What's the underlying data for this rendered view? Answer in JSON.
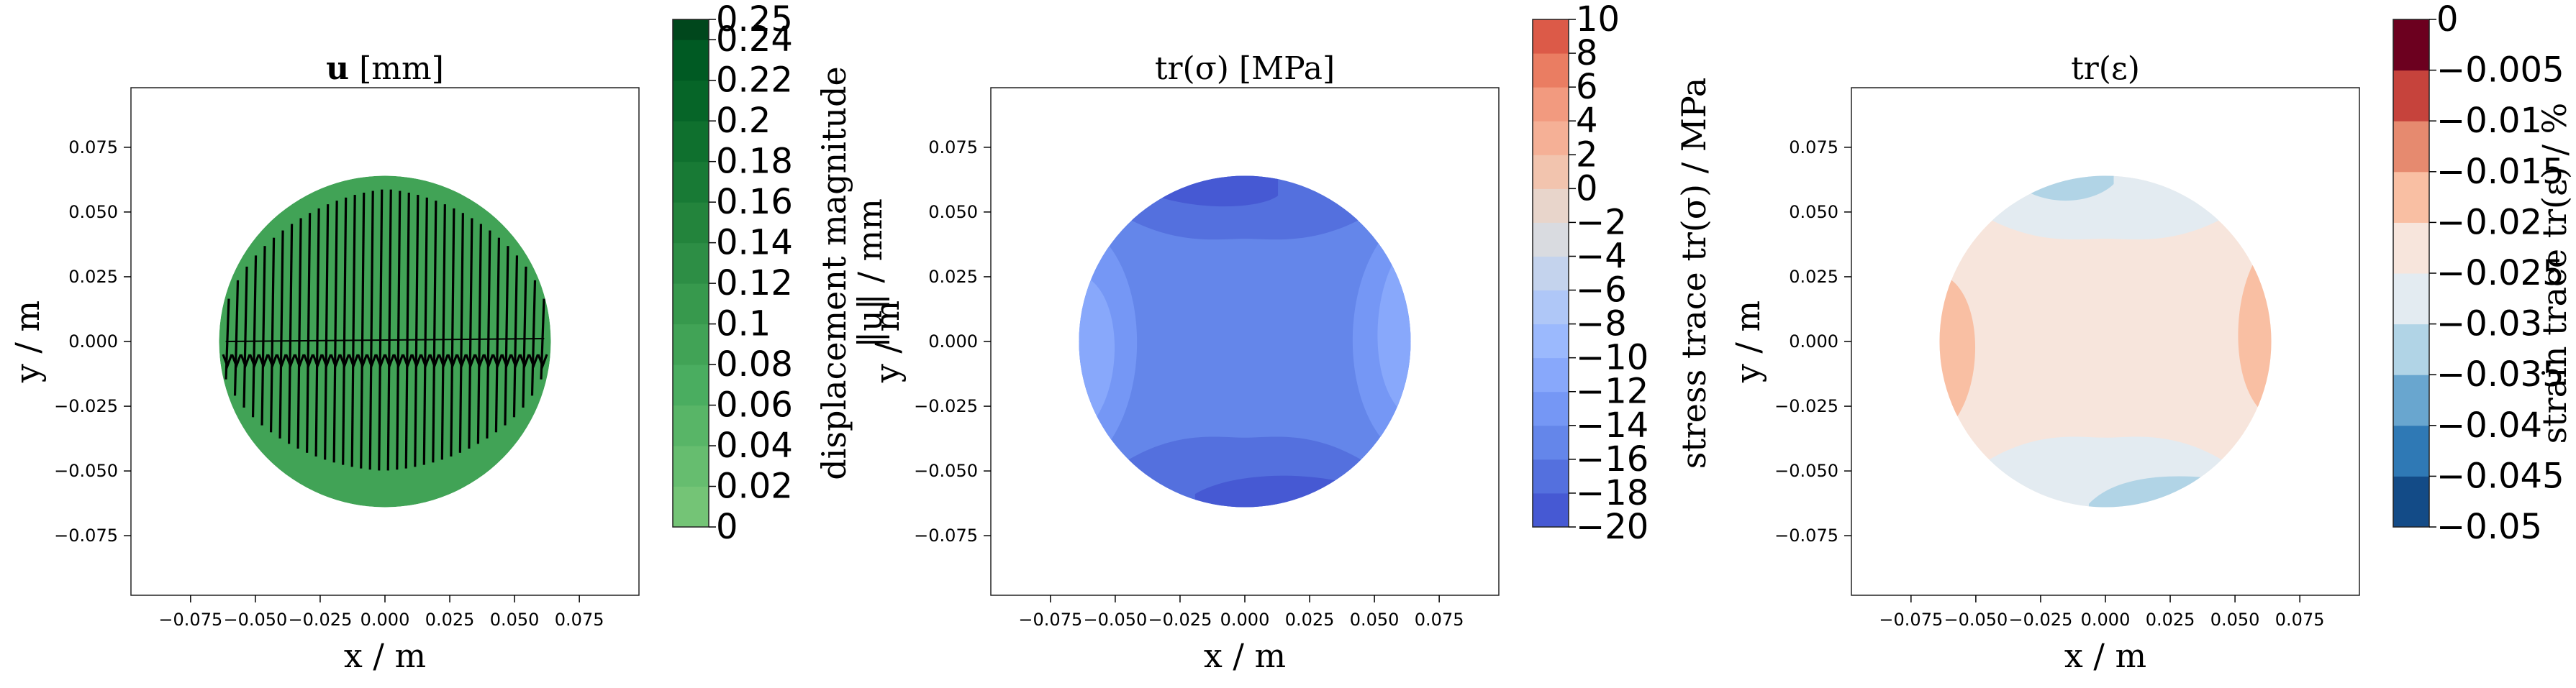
{
  "chart_data": [
    {
      "type": "heatmap",
      "title": "u [mm]",
      "title_bold": "u",
      "title_rest": " [mm]",
      "xlabel": "x / m",
      "ylabel": "y / m",
      "xlim": [
        -0.098,
        0.098
      ],
      "ylim": [
        -0.098,
        0.098
      ],
      "xticks": [
        -0.075,
        -0.05,
        -0.025,
        0.0,
        0.025,
        0.05,
        0.075
      ],
      "xtick_labels": [
        "−0.075",
        "−0.050",
        "−0.025",
        "0.000",
        "0.025",
        "0.050",
        "0.075"
      ],
      "yticks": [
        0.075,
        0.05,
        0.025,
        0.0,
        -0.025,
        -0.05,
        -0.075
      ],
      "ytick_labels": [
        "0.075",
        "0.050",
        "0.025",
        "0.000",
        "−0.025",
        "−0.050",
        "−0.075"
      ],
      "domain_radius": 0.064,
      "field_level": 0.1,
      "quiver": true,
      "colorbar": {
        "label_line1": "displacement magnitude",
        "label_line2": "‖u‖ / mm",
        "colormap": "Greens",
        "levels": [
          0,
          0.02,
          0.04,
          0.06,
          0.08,
          0.1,
          0.12,
          0.14,
          0.16,
          0.18,
          0.2,
          0.22,
          0.24,
          0.25
        ],
        "tick_labels": [
          "0",
          "0.02",
          "0.04",
          "0.06",
          "0.08",
          "0.1",
          "0.12",
          "0.14",
          "0.16",
          "0.18",
          "0.2",
          "0.22",
          "0.24",
          "0.25"
        ],
        "colors": [
          "#74c476",
          "#66bd6f",
          "#58b567",
          "#4aad60",
          "#41a356",
          "#37994d",
          "#2d8e45",
          "#23843c",
          "#187a35",
          "#0f702e",
          "#066528",
          "#005a23",
          "#00471c"
        ]
      }
    },
    {
      "type": "heatmap",
      "title": "tr(σ) [MPa]",
      "xlabel": "x / m",
      "ylabel": "y / m",
      "xlim": [
        -0.098,
        0.098
      ],
      "ylim": [
        -0.098,
        0.098
      ],
      "xticks": [
        -0.075,
        -0.05,
        -0.025,
        0.0,
        0.025,
        0.05,
        0.075
      ],
      "xtick_labels": [
        "−0.075",
        "−0.050",
        "−0.025",
        "0.000",
        "0.025",
        "0.050",
        "0.075"
      ],
      "yticks": [
        0.075,
        0.05,
        0.025,
        0.0,
        -0.025,
        -0.05,
        -0.075
      ],
      "ytick_labels": [
        "0.075",
        "0.050",
        "0.025",
        "0.000",
        "−0.025",
        "−0.050",
        "−0.075"
      ],
      "domain_radius": 0.064,
      "base_level": -15,
      "regions": [
        {
          "level": -17,
          "shape": "top-cap"
        },
        {
          "level": -19,
          "shape": "top-cap-inner"
        },
        {
          "level": -17,
          "shape": "bottom-cap"
        },
        {
          "level": -19,
          "shape": "bottom-cap-inner"
        },
        {
          "level": -13,
          "shape": "left-cap"
        },
        {
          "level": -11,
          "shape": "left-cap-inner"
        },
        {
          "level": -13,
          "shape": "right-cap"
        },
        {
          "level": -11,
          "shape": "right-cap-inner"
        }
      ],
      "colorbar": {
        "label_line1": "stress trace tr(σ) / MPa",
        "colormap": "coolwarm",
        "levels": [
          -20,
          -18,
          -16,
          -14,
          -12,
          -10,
          -8,
          -6,
          -4,
          -2,
          0,
          2,
          4,
          6,
          8,
          10
        ],
        "tick_labels": [
          "−20",
          "−18",
          "−16",
          "−14",
          "−12",
          "−10",
          "−8",
          "−6",
          "−4",
          "−2",
          "0",
          "2",
          "4",
          "6",
          "8",
          "10"
        ],
        "colors": [
          "#4659d3",
          "#5470de",
          "#6486ea",
          "#7597f5",
          "#88a8fb",
          "#9bb9fd",
          "#afc7f7",
          "#c4d3ed",
          "#d9dbe0",
          "#e8d5cb",
          "#f2c4ae",
          "#f5b096",
          "#f29a7f",
          "#ea7d62",
          "#dc5a48",
          "#b5082b"
        ]
      }
    },
    {
      "type": "heatmap",
      "title": "tr(ε)",
      "xlabel": "x / m",
      "ylabel": "y / m",
      "xlim": [
        -0.098,
        0.098
      ],
      "ylim": [
        -0.098,
        0.098
      ],
      "xticks": [
        -0.075,
        -0.05,
        -0.025,
        0.0,
        0.025,
        0.05,
        0.075
      ],
      "xtick_labels": [
        "−0.075",
        "−0.050",
        "−0.025",
        "0.000",
        "0.025",
        "0.050",
        "0.075"
      ],
      "yticks": [
        0.075,
        0.05,
        0.025,
        0.0,
        -0.025,
        -0.05,
        -0.075
      ],
      "ytick_labels": [
        "0.075",
        "0.050",
        "0.025",
        "0.000",
        "−0.025",
        "−0.050",
        "−0.075"
      ],
      "domain_radius": 0.064,
      "base_level": -0.0225,
      "regions": [
        {
          "level": -0.0275,
          "shape": "top-cap"
        },
        {
          "level": -0.0325,
          "shape": "top-cap-small"
        },
        {
          "level": -0.0275,
          "shape": "bottom-cap"
        },
        {
          "level": -0.0325,
          "shape": "bottom-cap-small"
        },
        {
          "level": -0.0175,
          "shape": "left-cap-inner"
        },
        {
          "level": -0.0175,
          "shape": "right-cap-inner"
        }
      ],
      "colorbar": {
        "label_line1": "strain trace tr(ε) / %",
        "colormap": "RdBu",
        "levels": [
          -0.05,
          -0.045,
          -0.04,
          -0.035,
          -0.03,
          -0.025,
          -0.02,
          -0.015,
          -0.01,
          -0.005,
          0
        ],
        "tick_labels": [
          "−0.05",
          "−0.045",
          "−0.04",
          "−0.035",
          "−0.03",
          "−0.025",
          "−0.02",
          "−0.015",
          "−0.01",
          "−0.005",
          "0"
        ],
        "colors": [
          "#134b87",
          "#2f79b5",
          "#69a6cf",
          "#b1d4e6",
          "#e3ebf1",
          "#f7e5dc",
          "#f9bfa3",
          "#e68a6f",
          "#c6433c",
          "#6c001f"
        ]
      }
    }
  ]
}
